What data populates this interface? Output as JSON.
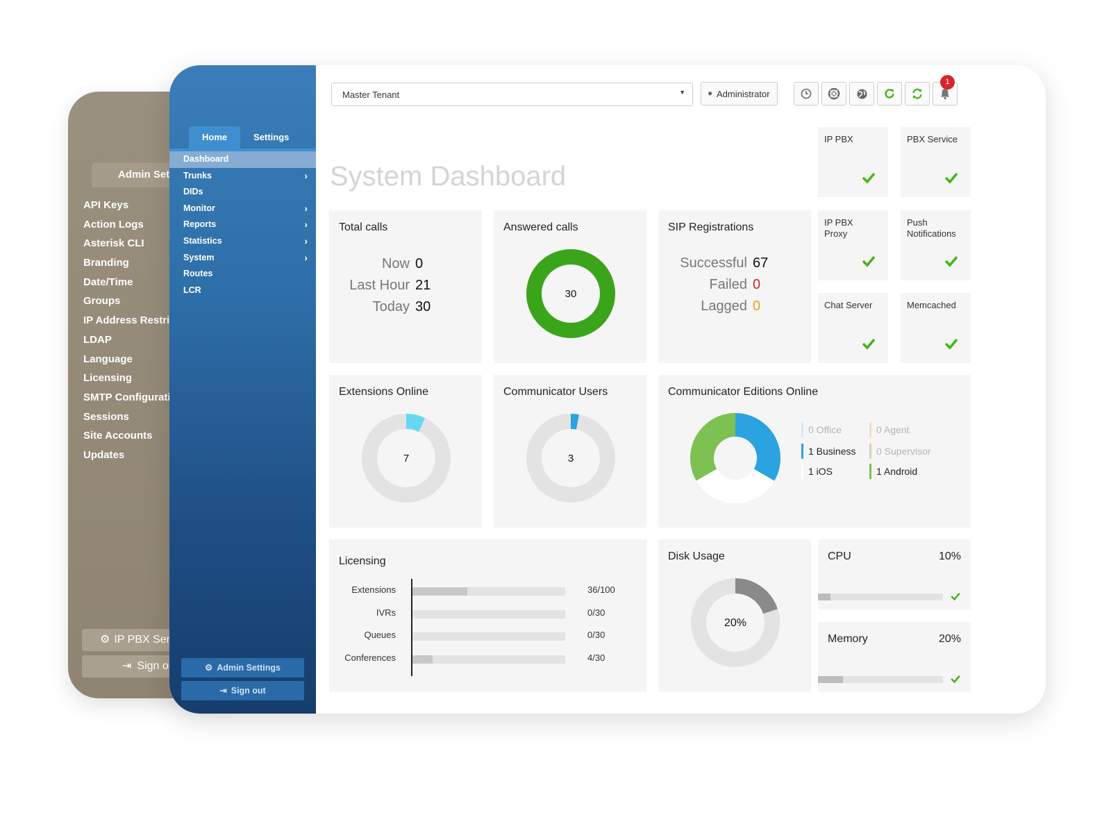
{
  "back_panel": {
    "tab": "Admin Settings",
    "menu": [
      "API Keys",
      "Action Logs",
      "Asterisk CLI",
      "Branding",
      "Date/Time",
      "Groups",
      "IP Address Restriction",
      "LDAP",
      "Language",
      "Licensing",
      "SMTP Configuration",
      "Sessions",
      "Site Accounts",
      "Updates"
    ],
    "btn_service": "IP PBX Service",
    "btn_signout": "Sign out"
  },
  "sidebar": {
    "tabs": [
      "Home",
      "Settings"
    ],
    "items": [
      {
        "label": "Dashboard",
        "chevron": false
      },
      {
        "label": "Trunks",
        "chevron": true
      },
      {
        "label": "DIDs",
        "chevron": false
      },
      {
        "label": "Monitor",
        "chevron": true
      },
      {
        "label": "Reports",
        "chevron": true
      },
      {
        "label": "Statistics",
        "chevron": true
      },
      {
        "label": "System",
        "chevron": true
      },
      {
        "label": "Routes",
        "chevron": false
      },
      {
        "label": "LCR",
        "chevron": false
      }
    ],
    "admin_settings": "Admin Settings",
    "sign_out": "Sign out"
  },
  "topbar": {
    "tenant": "Master Tenant",
    "user": "Administrator",
    "notification_count": "1",
    "icons": [
      "clock-icon",
      "lifebuoy-icon",
      "globe-icon",
      "refresh-icon",
      "sync-icon",
      "bell-icon"
    ]
  },
  "page_title": "System Dashboard",
  "services": [
    {
      "label": "IP PBX",
      "ok": true
    },
    {
      "label": "PBX Service",
      "ok": true
    },
    {
      "label": "IP PBX Proxy",
      "ok": true
    },
    {
      "label": "Push Notifications",
      "ok": true
    },
    {
      "label": "Chat Server",
      "ok": true
    },
    {
      "label": "Memcached",
      "ok": true
    }
  ],
  "total_calls": {
    "title": "Total calls",
    "rows": [
      {
        "label": "Now",
        "value": "0"
      },
      {
        "label": "Last Hour",
        "value": "21"
      },
      {
        "label": "Today",
        "value": "30"
      }
    ]
  },
  "answered_calls": {
    "title": "Answered calls",
    "value": "30",
    "fraction": 1.0
  },
  "sip": {
    "title": "SIP Registrations",
    "rows": [
      {
        "label": "Successful",
        "value": "67",
        "color": "#111111"
      },
      {
        "label": "Failed",
        "value": "0",
        "color": "#c8262b"
      },
      {
        "label": "Lagged",
        "value": "0",
        "color": "#f0a020"
      }
    ]
  },
  "extensions_online": {
    "title": "Extensions Online",
    "value": "7",
    "fraction": 0.07
  },
  "communicator_users": {
    "title": "Communicator Users",
    "value": "3",
    "fraction": 0.03
  },
  "editions": {
    "title": "Communicator Editions Online",
    "legend": [
      {
        "label": "0 Office",
        "color": "#d6e9f7",
        "active": false
      },
      {
        "label": "0 Agent",
        "color": "#f6dcc4",
        "active": false
      },
      {
        "label": "1 Business",
        "color": "#2ba3e0",
        "active": true
      },
      {
        "label": "0 Supervisor",
        "color": "#dccfbd",
        "active": false
      },
      {
        "label": "1 iOS",
        "color": "#ffffff",
        "active": true
      },
      {
        "label": "1 Android",
        "color": "#7cc152",
        "active": true
      }
    ]
  },
  "licensing": {
    "title": "Licensing",
    "rows": [
      {
        "label": "Extensions",
        "value": "36/100",
        "fraction": 0.36
      },
      {
        "label": "IVRs",
        "value": "0/30",
        "fraction": 0
      },
      {
        "label": "Queues",
        "value": "0/30",
        "fraction": 0
      },
      {
        "label": "Conferences",
        "value": "4/30",
        "fraction": 0.133
      }
    ]
  },
  "disk": {
    "title": "Disk Usage",
    "value": "20%",
    "fraction": 0.2
  },
  "cpu": {
    "title": "CPU",
    "value": "10%",
    "fraction": 0.1
  },
  "memory": {
    "title": "Memory",
    "value": "20%",
    "fraction": 0.2
  },
  "colors": {
    "green": "#3aa51b",
    "check": "#43b515",
    "accent_blue": "#2ba3e0",
    "cyan": "#66d9f0",
    "ring_gray": "#e3e3e3",
    "disk_dark": "#8a8a8a",
    "red_badge": "#d7262b"
  }
}
